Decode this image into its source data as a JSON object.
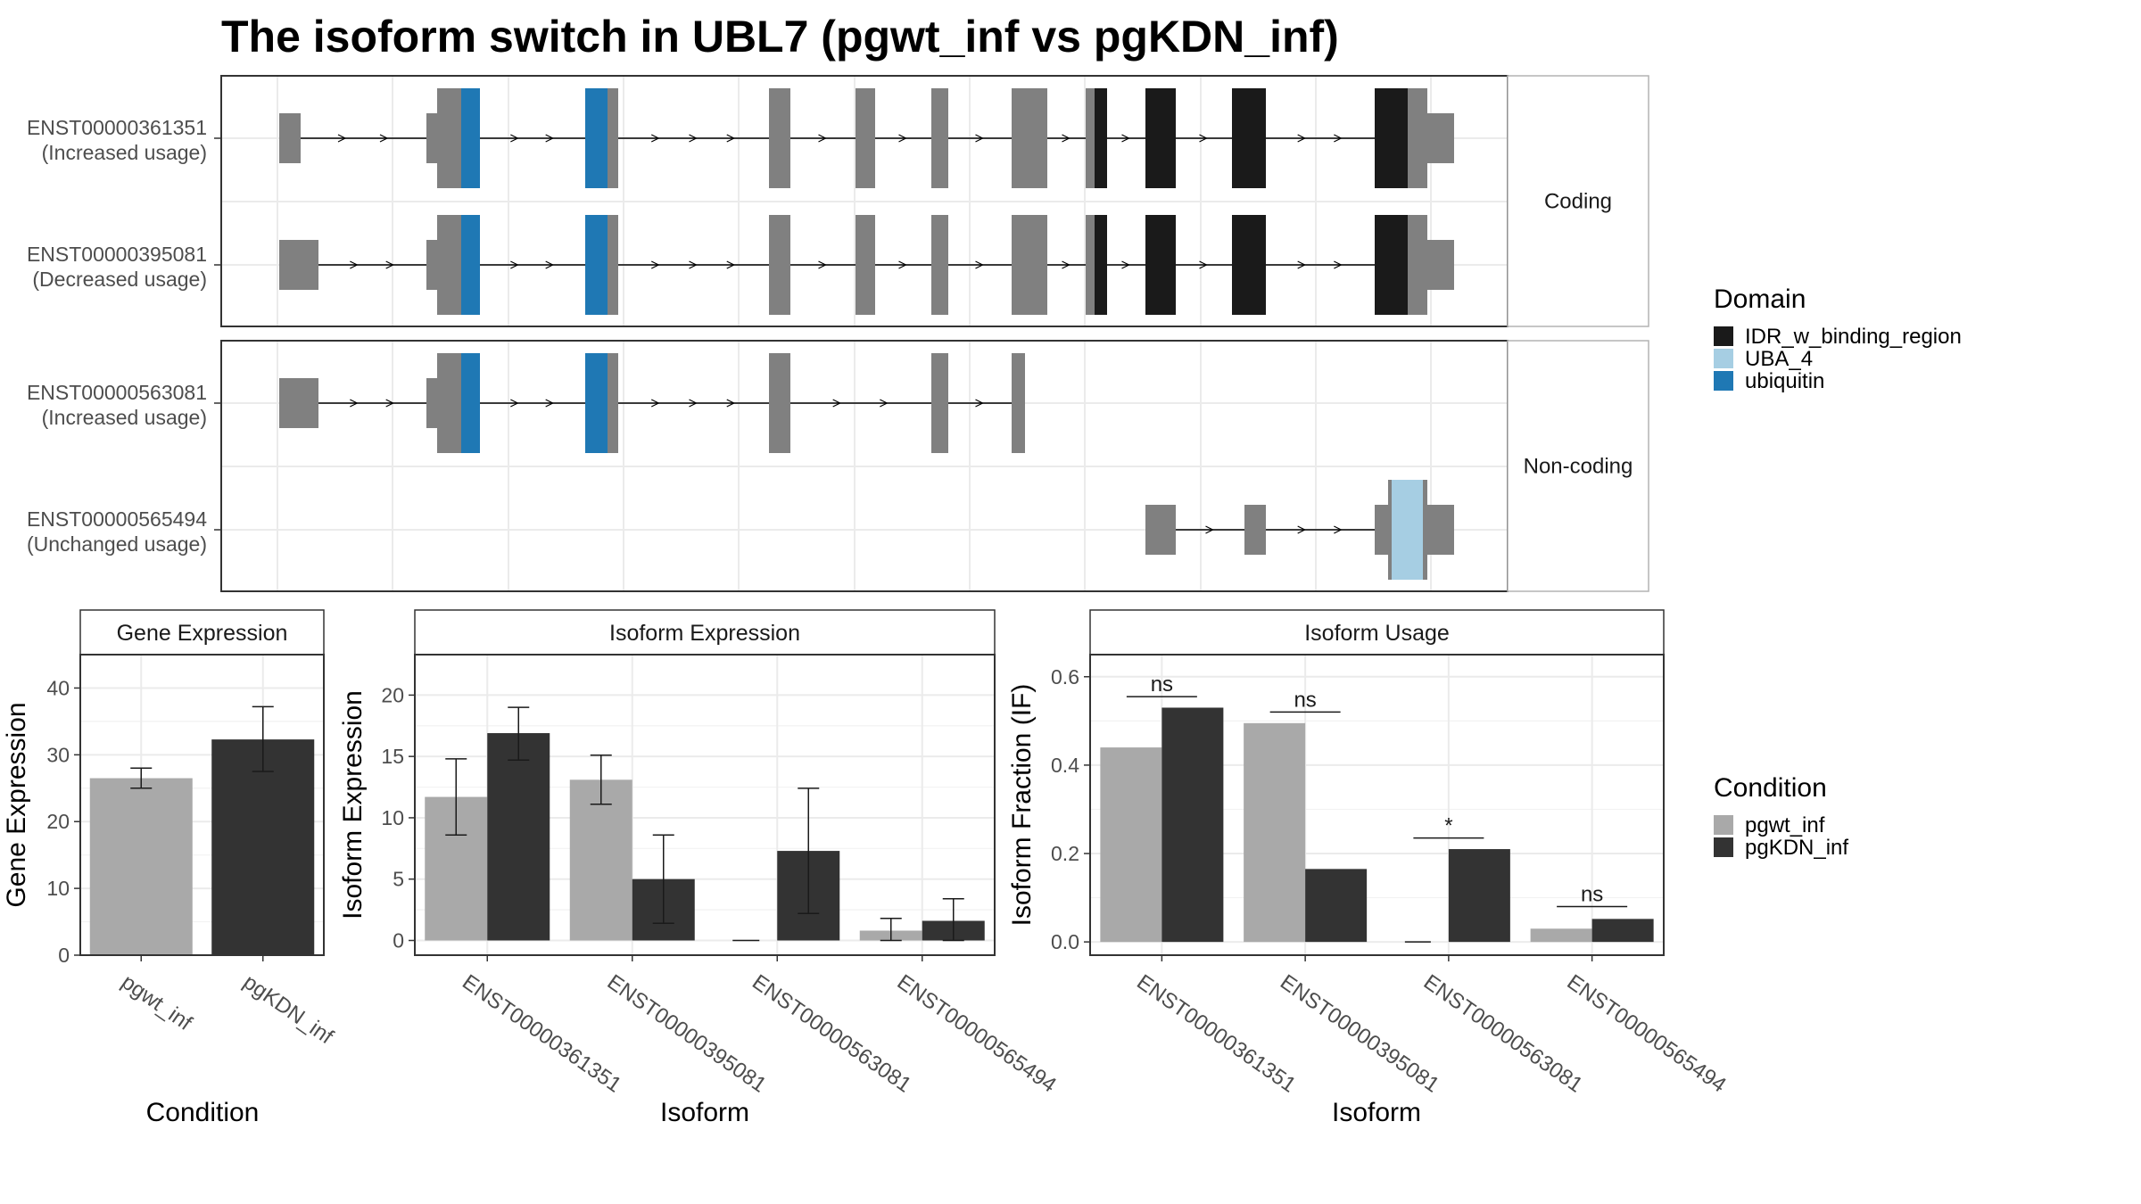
{
  "title": "The isoform switch in UBL7 (pgwt_inf vs pgKDN_inf)",
  "colors": {
    "exon_gray": "#808080",
    "idr": "#1a1a1a",
    "uba": "#a6cee3",
    "ubiquitin": "#1f78b4",
    "cond1": "#a9a9a9",
    "cond2": "#333333",
    "grid": "#ebebeb",
    "strip_bg": "#ffffff"
  },
  "structure": {
    "facets": [
      {
        "label": "Coding",
        "tracks": [
          {
            "id": "ENST00000361351",
            "usage": "(Increased usage)"
          },
          {
            "id": "ENST00000395081",
            "usage": "(Decreased usage)"
          }
        ]
      },
      {
        "label": "Non-coding",
        "tracks": [
          {
            "id": "ENST00000563081",
            "usage": "(Increased usage)"
          },
          {
            "id": "ENST00000565494",
            "usage": "(Unchanged usage)"
          }
        ]
      }
    ],
    "domain_legend": {
      "title": "Domain",
      "items": [
        {
          "label": "IDR_w_binding_region",
          "color": "#1a1a1a"
        },
        {
          "label": "UBA_4",
          "color": "#a6cee3"
        },
        {
          "label": "ubiquitin",
          "color": "#1f78b4"
        }
      ]
    }
  },
  "condition_legend": {
    "title": "Condition",
    "items": [
      {
        "label": "pgwt_inf",
        "color": "#a9a9a9"
      },
      {
        "label": "pgKDN_inf",
        "color": "#333333"
      }
    ]
  },
  "chart_data": [
    {
      "type": "bar",
      "title": "Gene Expression",
      "xlabel": "Condition",
      "ylabel": "Gene Expression",
      "categories": [
        "pgwt_inf",
        "pgKDN_inf"
      ],
      "values": [
        26.5,
        32.3
      ],
      "error_low": [
        25.0,
        27.5
      ],
      "error_high": [
        28.0,
        37.2
      ],
      "ylim": [
        0,
        45
      ],
      "yticks": [
        0,
        10,
        20,
        30,
        40
      ],
      "grid": true
    },
    {
      "type": "bar",
      "title": "Isoform Expression",
      "xlabel": "Isoform",
      "ylabel": "Isoform Expression",
      "categories": [
        "ENST00000361351",
        "ENST00000395081",
        "ENST00000563081",
        "ENST00000565494"
      ],
      "series": [
        {
          "name": "pgwt_inf",
          "values": [
            11.7,
            13.1,
            0.0,
            0.8
          ],
          "error_low": [
            8.6,
            11.1,
            0.0,
            0.0
          ],
          "error_high": [
            14.8,
            15.1,
            0.0,
            1.8
          ]
        },
        {
          "name": "pgKDN_inf",
          "values": [
            16.9,
            5.0,
            7.3,
            1.6
          ],
          "error_low": [
            14.7,
            1.4,
            2.2,
            0.0
          ],
          "error_high": [
            19.0,
            8.6,
            12.4,
            3.4
          ]
        }
      ],
      "ylim": [
        -1.2,
        23.3
      ],
      "yticks": [
        0,
        5,
        10,
        15,
        20
      ],
      "grid": true
    },
    {
      "type": "bar",
      "title": "Isoform Usage",
      "xlabel": "Isoform",
      "ylabel": "Isoform Fraction (IF)",
      "categories": [
        "ENST00000361351",
        "ENST00000395081",
        "ENST00000563081",
        "ENST00000565494"
      ],
      "series": [
        {
          "name": "pgwt_inf",
          "values": [
            0.44,
            0.495,
            0.0,
            0.03
          ]
        },
        {
          "name": "pgKDN_inf",
          "values": [
            0.53,
            0.165,
            0.21,
            0.052
          ]
        }
      ],
      "significance": [
        {
          "label": "ns",
          "y": 0.555
        },
        {
          "label": "ns",
          "y": 0.52
        },
        {
          "label": "*",
          "y": 0.235
        },
        {
          "label": "ns",
          "y": 0.08
        }
      ],
      "ylim": [
        -0.03,
        0.65
      ],
      "yticks": [
        0.0,
        0.2,
        0.4,
        0.6
      ],
      "ytick_labels": [
        "0.0",
        "0.2",
        "0.4",
        "0.6"
      ],
      "grid": true
    }
  ]
}
